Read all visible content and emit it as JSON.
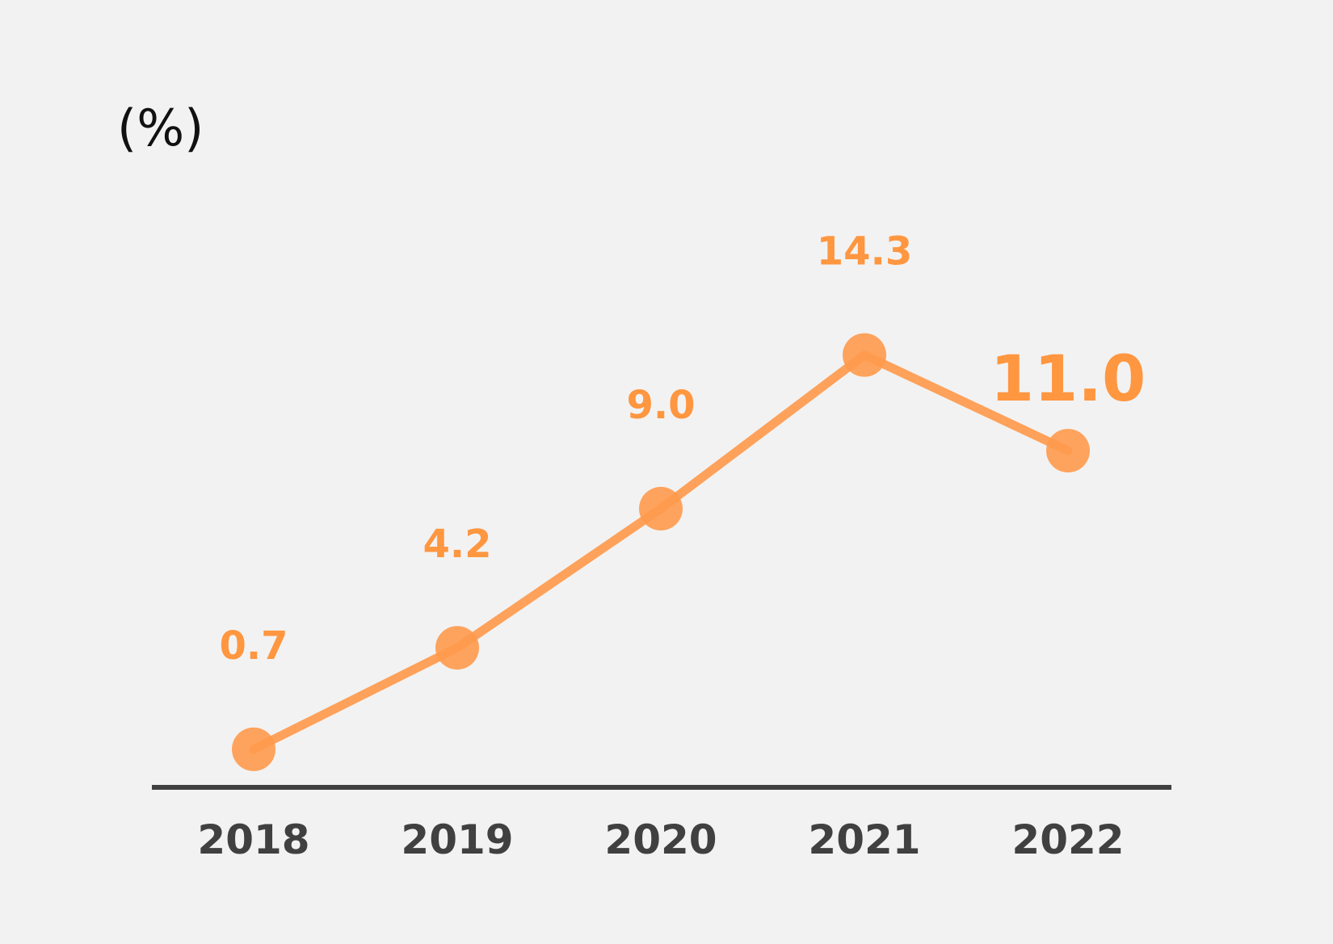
{
  "chart_data": {
    "type": "line",
    "unit_label": "(%)",
    "categories": [
      "2018",
      "2019",
      "2020",
      "2021",
      "2022"
    ],
    "values": [
      0.7,
      4.2,
      9.0,
      14.3,
      11.0
    ],
    "value_labels": [
      "0.7",
      "4.2",
      "9.0",
      "14.3",
      "11.0"
    ],
    "highlight_last": true,
    "ylim": [
      0,
      20
    ],
    "grid": false,
    "legend": "none",
    "colors": {
      "line": "#ff9a4d",
      "label": "#ff9640",
      "axis": "#404040",
      "background": "#f2f2f2"
    }
  }
}
